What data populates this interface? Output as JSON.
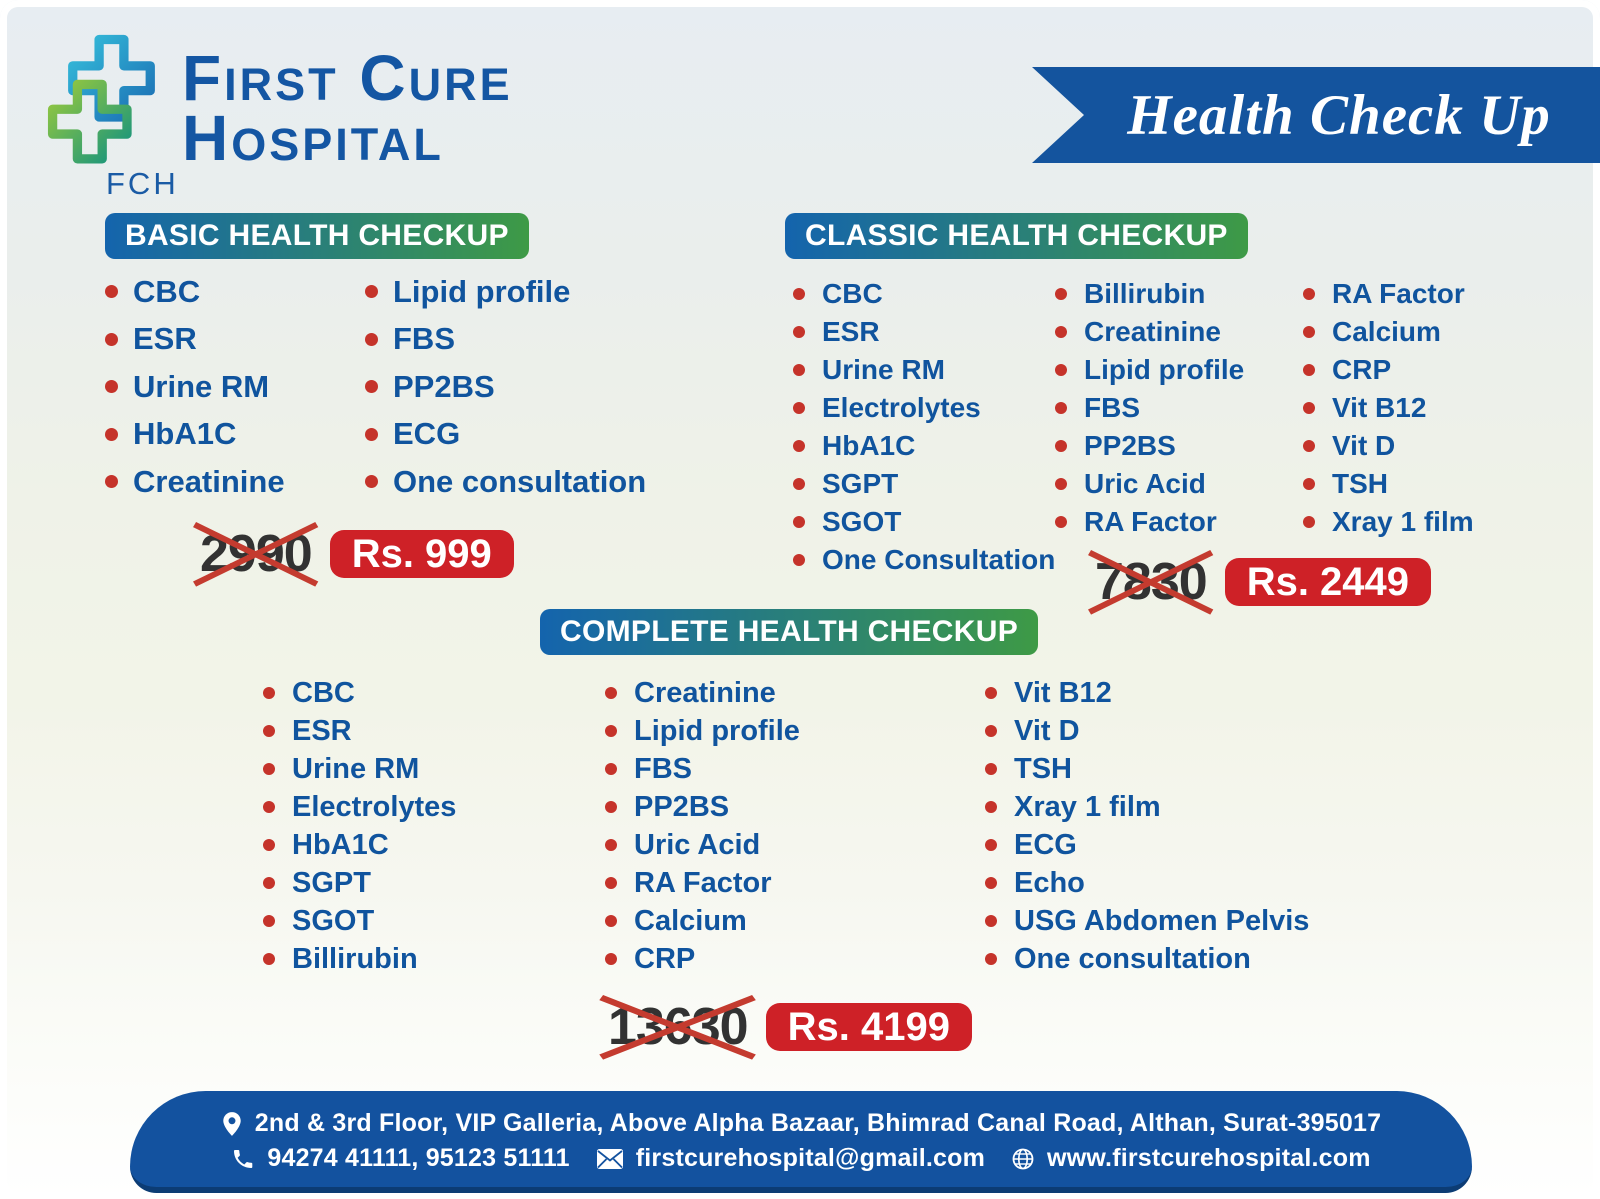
{
  "brand": {
    "abbr": "FCH",
    "name_line1": "First Cure",
    "name_line2": "Hospital"
  },
  "ribbon": {
    "title": "Health Check Up"
  },
  "packages": [
    {
      "title": "BASIC HEALTH CHECKUP",
      "old_price": "2990",
      "price": "Rs. 999",
      "columns": [
        [
          "CBC",
          "ESR",
          "Urine RM",
          "HbA1C",
          "Creatinine"
        ],
        [
          "Lipid profile",
          "FBS",
          "PP2BS",
          "ECG",
          "One consultation"
        ]
      ]
    },
    {
      "title": "CLASSIC HEALTH CHECKUP",
      "old_price": "7830",
      "price": "Rs. 2449",
      "columns": [
        [
          "CBC",
          "ESR",
          "Urine RM",
          "Electrolytes",
          "HbA1C",
          "SGPT",
          "SGOT",
          "One Consultation"
        ],
        [
          "Billirubin",
          "Creatinine",
          "Lipid profile",
          "FBS",
          "PP2BS",
          "Uric Acid",
          "RA Factor"
        ],
        [
          "RA Factor",
          "Calcium",
          "CRP",
          "Vit B12",
          "Vit D",
          "TSH",
          "Xray 1 film"
        ]
      ]
    },
    {
      "title": "COMPLETE HEALTH CHECKUP",
      "old_price": "13630",
      "price": "Rs. 4199",
      "columns": [
        [
          "CBC",
          "ESR",
          "Urine RM",
          "Electrolytes",
          "HbA1C",
          "SGPT",
          "SGOT",
          "Billirubin"
        ],
        [
          "Creatinine",
          "Lipid profile",
          "FBS",
          "PP2BS",
          "Uric Acid",
          "RA Factor",
          "Calcium",
          "CRP"
        ],
        [
          "Vit B12",
          "Vit D",
          "TSH",
          "Xray 1 film",
          "ECG",
          "Echo",
          "USG Abdomen Pelvis",
          "One consultation"
        ]
      ]
    }
  ],
  "footer": {
    "address": "2nd & 3rd Floor, VIP Galleria, Above Alpha Bazaar, Bhimrad Canal Road, Althan, Surat-395017",
    "phones": "94274 41111, 95123 51111",
    "email": "firstcurehospital@gmail.com",
    "website": "www.firstcurehospital.com"
  },
  "icons": {
    "logo": "dual-cross-logo-icon",
    "bullet": "bullet-dot-icon",
    "address": "location-pin-icon",
    "phone": "phone-icon",
    "email": "envelope-icon",
    "website": "globe-icon"
  },
  "colors": {
    "ribbon_blue": "#14549e",
    "footer_blue": "#13529f",
    "header_gradient_start": "#1464ad",
    "header_gradient_end": "#3e9a46",
    "price_red": "#ce2127",
    "item_text_blue": "#10549e",
    "bullet_red": "#c5332a",
    "old_price_gray": "#323232",
    "strike_red": "#c43b2f"
  }
}
